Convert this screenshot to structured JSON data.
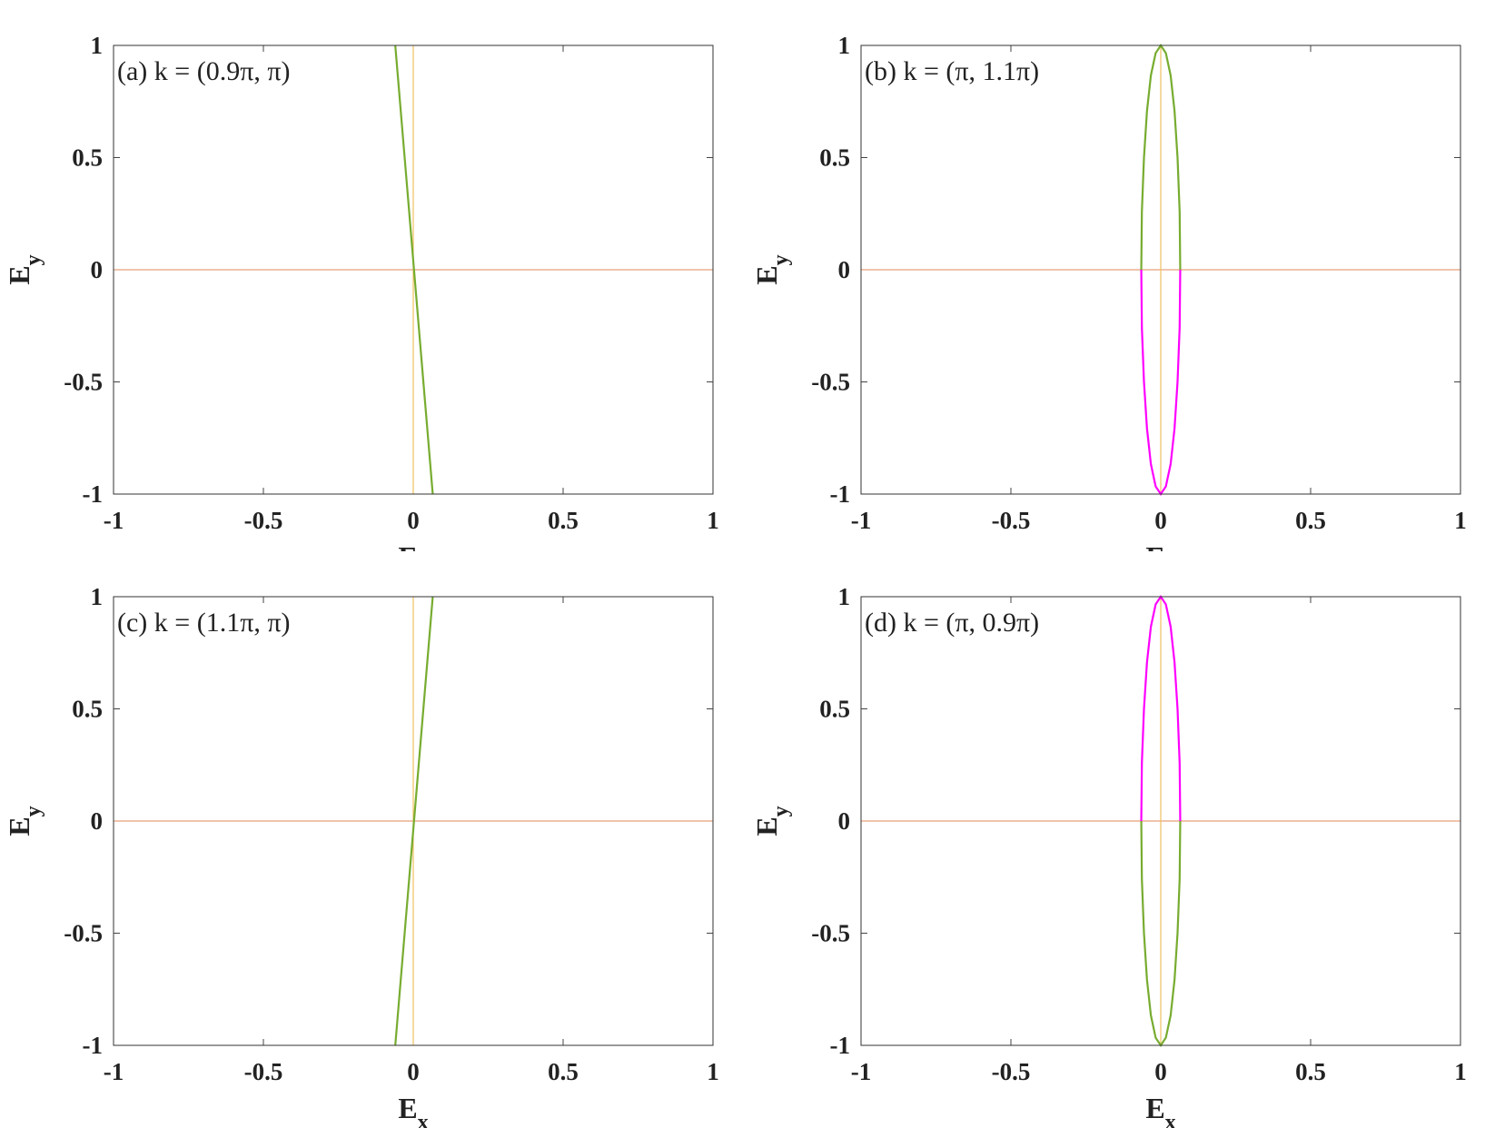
{
  "chart_data": [
    {
      "type": "line",
      "annotation": "(a) k = (0.9π, π)",
      "xlabel": {
        "text": "E",
        "subscript": "x"
      },
      "ylabel": {
        "text": "E",
        "subscript": "y"
      },
      "xlim": [
        -1,
        1
      ],
      "ylim": [
        -1,
        1
      ],
      "xticks": [
        -1,
        -0.5,
        0,
        0.5,
        1
      ],
      "yticks": [
        -1,
        -0.5,
        0,
        0.5,
        1
      ],
      "series": [
        {
          "color": "#e8a07a",
          "x": [
            -1,
            1
          ],
          "values": [
            0,
            0
          ]
        },
        {
          "color": "#f0c060",
          "x": [
            0,
            0
          ],
          "values": [
            -1,
            1
          ]
        },
        {
          "color": "#77ac30",
          "x": [
            -0.06,
            0.065
          ],
          "values": [
            1,
            -1
          ]
        }
      ]
    },
    {
      "type": "line",
      "annotation": "(b) k = (π, 1.1π)",
      "xlabel": {
        "text": "E",
        "subscript": "x"
      },
      "ylabel": {
        "text": "E",
        "subscript": "y"
      },
      "xlim": [
        -1,
        1
      ],
      "ylim": [
        -1,
        1
      ],
      "xticks": [
        -1,
        -0.5,
        0,
        0.5,
        1
      ],
      "yticks": [
        -1,
        -0.5,
        0,
        0.5,
        1
      ],
      "series": [
        {
          "color": "#e8a07a",
          "x": [
            -1,
            1
          ],
          "values": [
            0,
            0
          ]
        },
        {
          "color": "#f0c060",
          "x": [
            0,
            0
          ],
          "values": [
            -1,
            1
          ]
        },
        {
          "color": "#77ac30",
          "x": [
            0.065,
            0.063,
            0.056,
            0.046,
            0.033,
            0.017,
            0,
            -0.017,
            -0.033,
            -0.046,
            -0.056,
            -0.063,
            -0.065
          ],
          "values": [
            0,
            0.259,
            0.5,
            0.707,
            0.866,
            0.966,
            1,
            0.966,
            0.866,
            0.707,
            0.5,
            0.259,
            0
          ]
        },
        {
          "color": "#ff00ff",
          "x": [
            0.065,
            0.063,
            0.056,
            0.046,
            0.033,
            0.017,
            0,
            -0.017,
            -0.033,
            -0.046,
            -0.056,
            -0.063,
            -0.065
          ],
          "values": [
            0,
            -0.259,
            -0.5,
            -0.707,
            -0.866,
            -0.966,
            -1,
            -0.966,
            -0.866,
            -0.707,
            -0.5,
            -0.259,
            0
          ]
        }
      ]
    },
    {
      "type": "line",
      "annotation": "(c) k = (1.1π, π)",
      "xlabel": {
        "text": "E",
        "subscript": "x"
      },
      "ylabel": {
        "text": "E",
        "subscript": "y"
      },
      "xlim": [
        -1,
        1
      ],
      "ylim": [
        -1,
        1
      ],
      "xticks": [
        -1,
        -0.5,
        0,
        0.5,
        1
      ],
      "yticks": [
        -1,
        -0.5,
        0,
        0.5,
        1
      ],
      "series": [
        {
          "color": "#e8a07a",
          "x": [
            -1,
            1
          ],
          "values": [
            0,
            0
          ]
        },
        {
          "color": "#f0c060",
          "x": [
            0,
            0
          ],
          "values": [
            -1,
            1
          ]
        },
        {
          "color": "#77ac30",
          "x": [
            -0.06,
            0.065
          ],
          "values": [
            -1,
            1
          ]
        }
      ]
    },
    {
      "type": "line",
      "annotation": "(d) k = (π, 0.9π)",
      "xlabel": {
        "text": "E",
        "subscript": "x"
      },
      "ylabel": {
        "text": "E",
        "subscript": "y"
      },
      "xlim": [
        -1,
        1
      ],
      "ylim": [
        -1,
        1
      ],
      "xticks": [
        -1,
        -0.5,
        0,
        0.5,
        1
      ],
      "yticks": [
        -1,
        -0.5,
        0,
        0.5,
        1
      ],
      "series": [
        {
          "color": "#e8a07a",
          "x": [
            -1,
            1
          ],
          "values": [
            0,
            0
          ]
        },
        {
          "color": "#f0c060",
          "x": [
            0,
            0
          ],
          "values": [
            -1,
            1
          ]
        },
        {
          "color": "#ff00ff",
          "x": [
            0.065,
            0.063,
            0.056,
            0.046,
            0.033,
            0.017,
            0,
            -0.017,
            -0.033,
            -0.046,
            -0.056,
            -0.063,
            -0.065
          ],
          "values": [
            0,
            0.259,
            0.5,
            0.707,
            0.866,
            0.966,
            1,
            0.966,
            0.866,
            0.707,
            0.5,
            0.259,
            0
          ]
        },
        {
          "color": "#77ac30",
          "x": [
            0.065,
            0.063,
            0.056,
            0.046,
            0.033,
            0.017,
            0,
            -0.017,
            -0.033,
            -0.046,
            -0.056,
            -0.063,
            -0.065
          ],
          "values": [
            0,
            -0.259,
            -0.5,
            -0.707,
            -0.866,
            -0.966,
            -1,
            -0.966,
            -0.866,
            -0.707,
            -0.5,
            -0.259,
            0
          ]
        }
      ]
    }
  ]
}
